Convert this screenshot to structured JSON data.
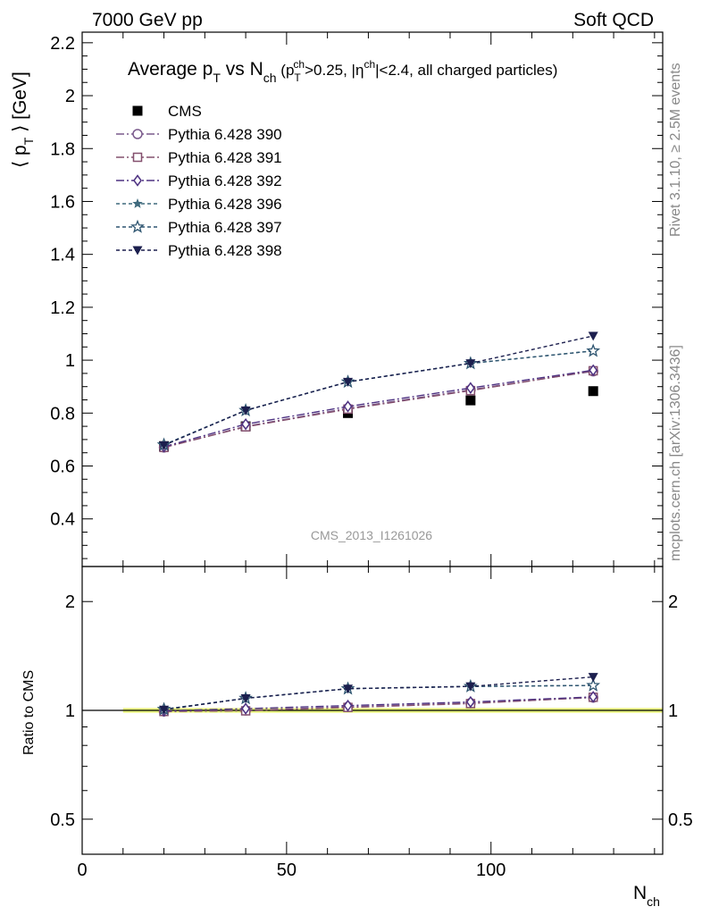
{
  "header": {
    "left": "7000 GeV pp",
    "right": "Soft QCD"
  },
  "side": {
    "rivet": "Rivet 3.1.10, ≥ 2.5M events",
    "source": "mcplots.cern.ch [arXiv:1306.3436]"
  },
  "analysis_id": "CMS_2013_I1261026",
  "chart_data": [
    {
      "type": "line",
      "panel": "main",
      "title": "Average pT vs Nch (pTch>0.25, |ηch|<2.4, all charged particles)",
      "title_parts": {
        "a": "Average p",
        "a_sub": "T",
        "b": " vs N",
        "b_sub": "ch",
        "c": " (p",
        "c_sub": "T",
        "c_sup": "ch",
        "d": ">0.25, |η",
        "d_sup": "ch",
        "e": "|<2.4, all charged particles)"
      },
      "ylabel": "⟨ pT ⟩ [GeV]",
      "ylabel_parts": {
        "pre": "⟨ p",
        "sub": "T",
        "post": " ⟩ [GeV]"
      },
      "xlabel": "Nch",
      "xlabel_parts": {
        "main": "N",
        "sub": "ch"
      },
      "xlim": [
        0,
        142
      ],
      "ylim": [
        0.22,
        2.24
      ],
      "xticks": [
        0,
        50,
        100
      ],
      "xtick_labels": [
        "0",
        "50",
        "100"
      ],
      "yticks": [
        0.4,
        0.6,
        0.8,
        1.0,
        1.2,
        1.4,
        1.6,
        1.8,
        2.0,
        2.2
      ],
      "ytick_labels": [
        "0.4",
        "0.6",
        "0.8",
        "1",
        "1.2",
        "1.4",
        "1.6",
        "1.8",
        "2",
        "2.2"
      ],
      "legend_position": "top-left",
      "x": [
        20,
        40,
        65,
        95,
        125
      ],
      "series": [
        {
          "name": "CMS",
          "marker": "square-filled",
          "color": "#000000",
          "dash": "none",
          "values": [
            0.675,
            0.75,
            0.8,
            0.848,
            0.883
          ]
        },
        {
          "name": "Pythia 6.428 390",
          "marker": "circle-open",
          "color": "#7a5a8c",
          "dash": "9,3,2,3",
          "values": [
            0.67,
            0.75,
            0.818,
            0.888,
            0.958
          ]
        },
        {
          "name": "Pythia 6.428 391",
          "marker": "square-open",
          "color": "#84506e",
          "dash": "9,3,2,3",
          "values": [
            0.67,
            0.748,
            0.815,
            0.885,
            0.96
          ]
        },
        {
          "name": "Pythia 6.428 392",
          "marker": "diamond-open",
          "color": "#4e3282",
          "dash": "9,3,2,3",
          "values": [
            0.673,
            0.758,
            0.825,
            0.895,
            0.962
          ]
        },
        {
          "name": "Pythia 6.428 396",
          "marker": "star-filled",
          "color": "#3f6a7d",
          "dash": "4,3",
          "values": [
            0.68,
            0.81,
            0.918,
            0.988,
            1.035
          ]
        },
        {
          "name": "Pythia 6.428 397",
          "marker": "star-open",
          "color": "#2e5570",
          "dash": "4,3",
          "values": [
            0.68,
            0.81,
            0.918,
            0.988,
            1.035
          ]
        },
        {
          "name": "Pythia 6.428 398",
          "marker": "triangle-down-filled",
          "color": "#1c1f4e",
          "dash": "4,3",
          "values": [
            0.678,
            0.81,
            0.918,
            0.988,
            1.092
          ]
        }
      ]
    },
    {
      "type": "line",
      "panel": "ratio",
      "ylabel": "Ratio to CMS",
      "xlim": [
        0,
        142
      ],
      "scale": "log",
      "ylim": [
        0.4,
        2.5
      ],
      "yticks": [
        0.5,
        1,
        2
      ],
      "ytick_labels": [
        "0.5",
        "1",
        "2"
      ],
      "reference_line": 1,
      "band_color": "#e8f57a",
      "band_x": [
        10,
        142
      ],
      "band_y": [
        0.985,
        1.015
      ],
      "x": [
        20,
        40,
        65,
        95,
        125
      ],
      "series": [
        {
          "name": "Pythia 6.428 390",
          "values": [
            0.993,
            1.0,
            1.023,
            1.047,
            1.085
          ]
        },
        {
          "name": "Pythia 6.428 391",
          "values": [
            0.993,
            0.997,
            1.019,
            1.044,
            1.087
          ]
        },
        {
          "name": "Pythia 6.428 392",
          "values": [
            0.997,
            1.011,
            1.031,
            1.055,
            1.09
          ]
        },
        {
          "name": "Pythia 6.428 396",
          "values": [
            1.007,
            1.08,
            1.148,
            1.165,
            1.172
          ]
        },
        {
          "name": "Pythia 6.428 397",
          "values": [
            1.007,
            1.08,
            1.148,
            1.165,
            1.172
          ]
        },
        {
          "name": "Pythia 6.428 398",
          "values": [
            1.004,
            1.08,
            1.148,
            1.165,
            1.237
          ]
        }
      ]
    }
  ]
}
